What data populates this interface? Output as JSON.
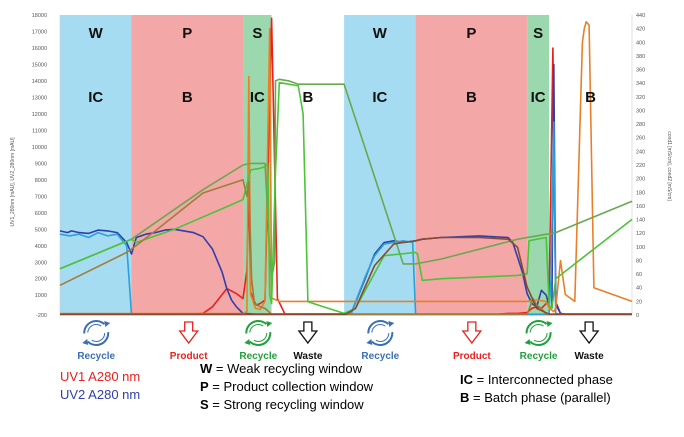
{
  "chart_data": {
    "type": "line",
    "title": "",
    "ylabel_left": "UV1_280nm [mAU], UV2_280nm [mAU]",
    "ylabel_right": "cond1 [mS/cm], cond2 [mS/cm]",
    "ylim_left": [
      -200,
      18000
    ],
    "ylim_right": [
      0,
      440
    ],
    "xlim": [
      0,
      600
    ],
    "left_ticks": [
      "-200",
      "1000",
      "2000",
      "3000",
      "4000",
      "5000",
      "6000",
      "7000",
      "8000",
      "9000",
      "10000",
      "11000",
      "12000",
      "13000",
      "14000",
      "15000",
      "16000",
      "17000",
      "18000"
    ],
    "right_ticks": [
      "0",
      "20",
      "40",
      "60",
      "80",
      "100",
      "120",
      "140",
      "160",
      "180",
      "200",
      "220",
      "240",
      "260",
      "280",
      "300",
      "320",
      "340",
      "360",
      "380",
      "400",
      "420",
      "440"
    ],
    "phases": [
      {
        "window": "W",
        "mode": "IC",
        "x0": 0,
        "x1": 75,
        "color": "#a6dcf2"
      },
      {
        "window": "P",
        "mode": "B",
        "x0": 75,
        "x1": 192,
        "color": "#f4a7a7"
      },
      {
        "window": "S",
        "mode": "IC",
        "x0": 192,
        "x1": 222,
        "color": "#9cd8ae"
      },
      {
        "window": "",
        "mode": "B",
        "x0": 222,
        "x1": 298,
        "color": "#ffffff"
      },
      {
        "window": "W",
        "mode": "IC",
        "x0": 298,
        "x1": 373,
        "color": "#a6dcf2"
      },
      {
        "window": "P",
        "mode": "B",
        "x0": 373,
        "x1": 490,
        "color": "#f4a7a7"
      },
      {
        "window": "S",
        "mode": "IC",
        "x0": 490,
        "x1": 513,
        "color": "#9cd8ae"
      },
      {
        "window": "",
        "mode": "B",
        "x0": 513,
        "x1": 600,
        "color": "#ffffff"
      }
    ],
    "steps": [
      {
        "label": "Recycle",
        "icon": "recycle-icon",
        "x": 38,
        "color": "#3a6fb5"
      },
      {
        "label": "Product",
        "icon": "down-arrow-icon",
        "x": 135,
        "color": "#e8201e"
      },
      {
        "label": "Recycle",
        "icon": "recycle-icon",
        "x": 208,
        "color": "#1fa23c"
      },
      {
        "label": "Waste",
        "icon": "down-arrow-icon",
        "x": 260,
        "color": "#111111"
      },
      {
        "label": "Recycle",
        "icon": "recycle-icon",
        "x": 336,
        "color": "#3a6fb5"
      },
      {
        "label": "Product",
        "icon": "down-arrow-icon",
        "x": 432,
        "color": "#e8201e"
      },
      {
        "label": "Recycle",
        "icon": "recycle-icon",
        "x": 502,
        "color": "#1fa23c"
      },
      {
        "label": "Waste",
        "icon": "down-arrow-icon",
        "x": 555,
        "color": "#111111"
      }
    ],
    "series": [
      {
        "color": "#e8201e",
        "axis": "left",
        "x": [
          0,
          70,
          80,
          120,
          130,
          140,
          150,
          160,
          175,
          185,
          192,
          196,
          198,
          200,
          204,
          206,
          210,
          215,
          222,
          228,
          236,
          298,
          360,
          373,
          380,
          390,
          400,
          410,
          420,
          440,
          460,
          470,
          480,
          490,
          495,
          500,
          505,
          510,
          513,
          517,
          520,
          525,
          530,
          535,
          600
        ],
        "y": [
          -150,
          -150,
          -150,
          -150,
          -150,
          -150,
          -100,
          300,
          1400,
          1100,
          800,
          2500,
          7600,
          1200,
          600,
          400,
          500,
          700,
          17800,
          800,
          -150,
          -150,
          -150,
          -150,
          -150,
          -150,
          -150,
          -150,
          -150,
          -150,
          -150,
          -100,
          -100,
          -50,
          200,
          300,
          200,
          500,
          800,
          16000,
          400,
          -100,
          -150,
          -150,
          -150
        ]
      },
      {
        "color": "#2e3fae",
        "axis": "left",
        "x": [
          0,
          8,
          12,
          20,
          30,
          40,
          50,
          60,
          70,
          75,
          80,
          90,
          100,
          110,
          120,
          130,
          140,
          150,
          160,
          170,
          175,
          180,
          185,
          192,
          198,
          205,
          215,
          222,
          260,
          298,
          305,
          320,
          330,
          340,
          350,
          360,
          373,
          380,
          400,
          440,
          470,
          475,
          480,
          485,
          490,
          495,
          500,
          505,
          510,
          513,
          516,
          518,
          520,
          525,
          530,
          600
        ],
        "y": [
          4900,
          4800,
          4900,
          4800,
          4750,
          4950,
          4900,
          4800,
          4200,
          3500,
          4500,
          4700,
          4800,
          4950,
          5000,
          4900,
          4800,
          4550,
          3800,
          2400,
          1400,
          700,
          300,
          -100,
          -120,
          -150,
          -150,
          -150,
          -150,
          -150,
          -150,
          2000,
          3500,
          4200,
          4300,
          4200,
          4300,
          4400,
          4500,
          4600,
          4500,
          4200,
          3300,
          2400,
          1100,
          500,
          300,
          1300,
          1000,
          400,
          200,
          15000,
          600,
          -100,
          -150,
          -150
        ]
      },
      {
        "color": "#2f9fd8",
        "axis": "left",
        "x": [
          0,
          10,
          20,
          30,
          40,
          50,
          60,
          70,
          75,
          80,
          90,
          120,
          150,
          180,
          192,
          200,
          210,
          222,
          260,
          298,
          305,
          320,
          330,
          340,
          350,
          360,
          370,
          373,
          380,
          420,
          460,
          490,
          500,
          510,
          513,
          515,
          518,
          520,
          525,
          530,
          600
        ],
        "y": [
          4700,
          4600,
          4700,
          4500,
          4800,
          4600,
          4700,
          4000,
          -150,
          -150,
          -150,
          -150,
          -150,
          -150,
          -150,
          -150,
          -150,
          -150,
          -150,
          -150,
          -150,
          2100,
          3400,
          4100,
          4200,
          4300,
          4200,
          -150,
          -150,
          -150,
          -150,
          -150,
          -150,
          -150,
          -150,
          2000,
          11500,
          -100,
          -150,
          -150,
          -150
        ]
      },
      {
        "color": "#e8802a",
        "axis": "right",
        "x": [
          0,
          50,
          75,
          100,
          150,
          192,
          196,
          198,
          200,
          205,
          210,
          215,
          220,
          222,
          230,
          245,
          260,
          298,
          320,
          360,
          373,
          400,
          450,
          490,
          500,
          510,
          513,
          518,
          520,
          525,
          530,
          540,
          548,
          550,
          552,
          555,
          560,
          600
        ],
        "y": [
          2,
          2,
          2,
          2,
          2,
          2,
          5,
          350,
          30,
          10,
          8,
          20,
          420,
          25,
          20,
          20,
          20,
          20,
          20,
          20,
          20,
          20,
          20,
          20,
          22,
          20,
          10,
          5,
          10,
          80,
          30,
          20,
          400,
          420,
          430,
          425,
          40,
          20
        ]
      },
      {
        "color": "#6aa84f",
        "axis": "left",
        "x": [
          0,
          75,
          100,
          150,
          192,
          200,
          210,
          215,
          220,
          222,
          225,
          226,
          230,
          240,
          250,
          298,
          360,
          373,
          400,
          440,
          480,
          490,
          500,
          510,
          513,
          520,
          600
        ],
        "y": [
          2600,
          4400,
          5400,
          7400,
          8900,
          9000,
          9000,
          9000,
          3600,
          2000,
          3000,
          14000,
          14100,
          14000,
          13800,
          13800,
          2900,
          2900,
          3200,
          3800,
          4400,
          4500,
          4600,
          4700,
          4700,
          4800,
          6700
        ]
      },
      {
        "color": "#4bc43a",
        "axis": "left",
        "x": [
          0,
          75,
          80,
          120,
          180,
          192,
          200,
          210,
          215,
          218,
          220,
          222,
          226,
          230,
          240,
          250,
          255,
          260,
          298,
          310,
          340,
          373,
          375,
          380,
          400,
          440,
          480,
          490,
          492,
          500,
          510,
          513,
          516,
          520,
          600
        ],
        "y": [
          2600,
          4400,
          4200,
          5000,
          6500,
          6800,
          8600,
          8700,
          8800,
          9000,
          1000,
          500,
          8500,
          13900,
          13800,
          13700,
          12000,
          600,
          -100,
          200,
          3400,
          3600,
          3500,
          1900,
          2000,
          2100,
          2200,
          2300,
          4300,
          4400,
          4500,
          400,
          200,
          2000,
          5600
        ]
      },
      {
        "color": "#a07d3a",
        "axis": "left",
        "x": [
          0,
          70,
          75,
          100,
          150,
          192,
          196,
          198,
          201,
          204,
          210,
          215,
          222,
          300,
          360,
          373,
          380,
          420,
          480,
          490,
          493,
          496,
          500,
          505,
          510,
          513,
          600
        ],
        "y": [
          1600,
          3600,
          3800,
          4900,
          7200,
          8000,
          7000,
          7900,
          2000,
          500,
          300,
          200,
          -150,
          -150,
          -150,
          -150,
          -150,
          -150,
          -150,
          -150,
          300,
          800,
          400,
          200,
          -150,
          -150,
          -150
        ]
      },
      {
        "color": "#8a4a30",
        "axis": "left",
        "x": [
          0,
          75,
          80,
          120,
          180,
          192,
          200,
          210,
          222,
          300,
          310,
          330,
          350,
          360,
          373,
          380,
          400,
          440,
          470,
          480,
          490,
          500,
          513,
          600
        ],
        "y": [
          -150,
          -150,
          -150,
          -150,
          -150,
          -150,
          -150,
          -150,
          -150,
          -150,
          200,
          2800,
          4100,
          4200,
          4300,
          4400,
          4500,
          4500,
          4400,
          3900,
          1500,
          200,
          -150,
          -150
        ]
      }
    ]
  },
  "legend": {
    "uv1": "UV1 A280 nm",
    "uv2": "UV2 A280 nm",
    "uv1_color": "#e8201e",
    "uv2_color": "#2e3fae",
    "w_key": "W",
    "w_text": " = Weak recycling window",
    "p_key": "P",
    "p_text": " = Product collection window",
    "s_key": "S",
    "s_text": " = Strong recycling window",
    "ic_key": "IC",
    "ic_text": " = Interconnected phase",
    "b_key": "B",
    "b_text": " = Batch phase (parallel)"
  }
}
